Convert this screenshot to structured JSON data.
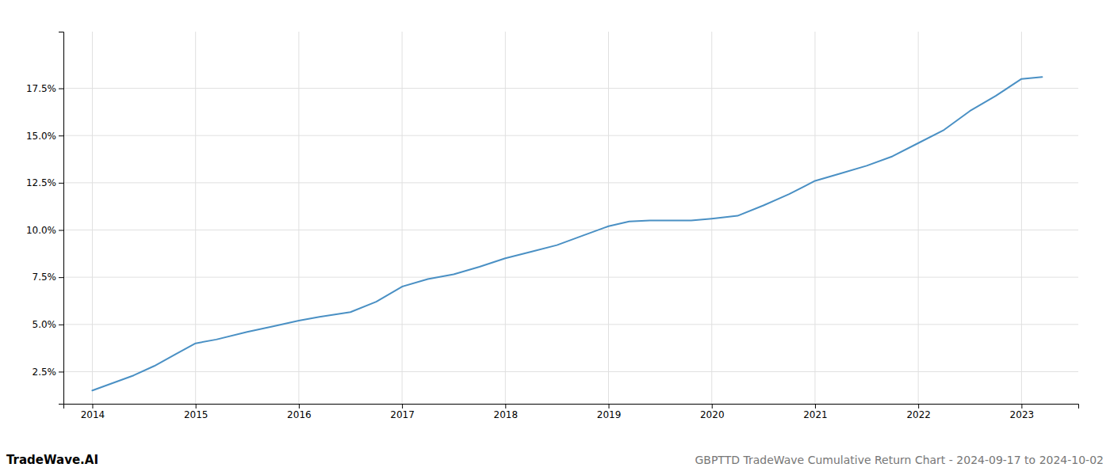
{
  "chart_data": {
    "type": "line",
    "title": "GBPTTD TradeWave Cumulative Return Chart - 2024-09-17 to 2024-10-02",
    "annotations": [
      "TradeWave.AI"
    ],
    "x": [
      2014.0,
      2014.2,
      2014.4,
      2014.6,
      2014.8,
      2015.0,
      2015.2,
      2015.5,
      2015.75,
      2016.0,
      2016.2,
      2016.5,
      2016.75,
      2017.0,
      2017.25,
      2017.5,
      2017.75,
      2018.0,
      2018.25,
      2018.5,
      2018.75,
      2019.0,
      2019.2,
      2019.4,
      2019.6,
      2019.8,
      2020.0,
      2020.25,
      2020.5,
      2020.75,
      2021.0,
      2021.25,
      2021.5,
      2021.75,
      2022.0,
      2022.25,
      2022.5,
      2022.75,
      2023.0,
      2023.2
    ],
    "values": [
      1.5,
      1.9,
      2.3,
      2.8,
      3.4,
      4.0,
      4.2,
      4.6,
      4.9,
      5.2,
      5.4,
      5.65,
      6.2,
      7.0,
      7.4,
      7.65,
      8.05,
      8.5,
      8.85,
      9.2,
      9.7,
      10.2,
      10.45,
      10.5,
      10.5,
      10.5,
      10.6,
      10.75,
      11.3,
      11.9,
      12.6,
      13.0,
      13.4,
      13.9,
      14.6,
      15.3,
      16.3,
      17.1,
      18.0,
      18.1
    ],
    "color": "#4a90c4",
    "xlim": [
      2013.72,
      2023.55
    ],
    "ylim": [
      0.8,
      20.5
    ],
    "xticks": [
      2014,
      2015,
      2016,
      2017,
      2018,
      2019,
      2020,
      2021,
      2022,
      2023
    ],
    "yticks": [
      {
        "value": 2.5,
        "label": "2.5%"
      },
      {
        "value": 5.0,
        "label": "5.0%"
      },
      {
        "value": 7.5,
        "label": "7.5%"
      },
      {
        "value": 10.0,
        "label": "10.0%"
      },
      {
        "value": 12.5,
        "label": "12.5%"
      },
      {
        "value": 15.0,
        "label": "15.0%"
      },
      {
        "value": 17.5,
        "label": "17.5%"
      }
    ],
    "grid": true
  }
}
